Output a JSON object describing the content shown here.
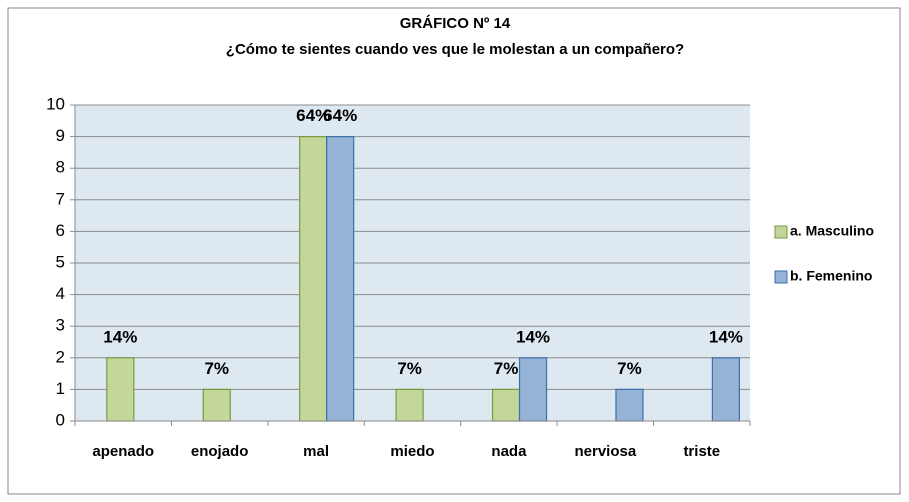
{
  "chart_data": {
    "type": "bar",
    "title": "GRÁFICO Nº 14",
    "subtitle": "¿Cómo te sientes cuando ves que le molestan a un compañero?",
    "categories": [
      "apenado",
      "enojado",
      "mal",
      "miedo",
      "nada",
      "nerviosa",
      "triste"
    ],
    "series": [
      {
        "name": "a. Masculino",
        "color": "#c4d79b",
        "values": [
          2,
          1,
          9,
          1,
          1,
          0,
          0
        ],
        "value_labels": [
          "14%",
          "7%",
          "64%",
          "7%",
          "7%",
          null,
          null
        ]
      },
      {
        "name": "b. Femenino",
        "color": "#95b3d7",
        "values": [
          0,
          0,
          9,
          0,
          2,
          1,
          2
        ],
        "value_labels": [
          null,
          null,
          "64%",
          null,
          "14%",
          "7%",
          "14%"
        ]
      }
    ],
    "ylim": [
      0,
      10
    ],
    "yticks": [
      0,
      1,
      2,
      3,
      4,
      5,
      6,
      7,
      8,
      9,
      10
    ],
    "grid": true,
    "legend": "right"
  }
}
